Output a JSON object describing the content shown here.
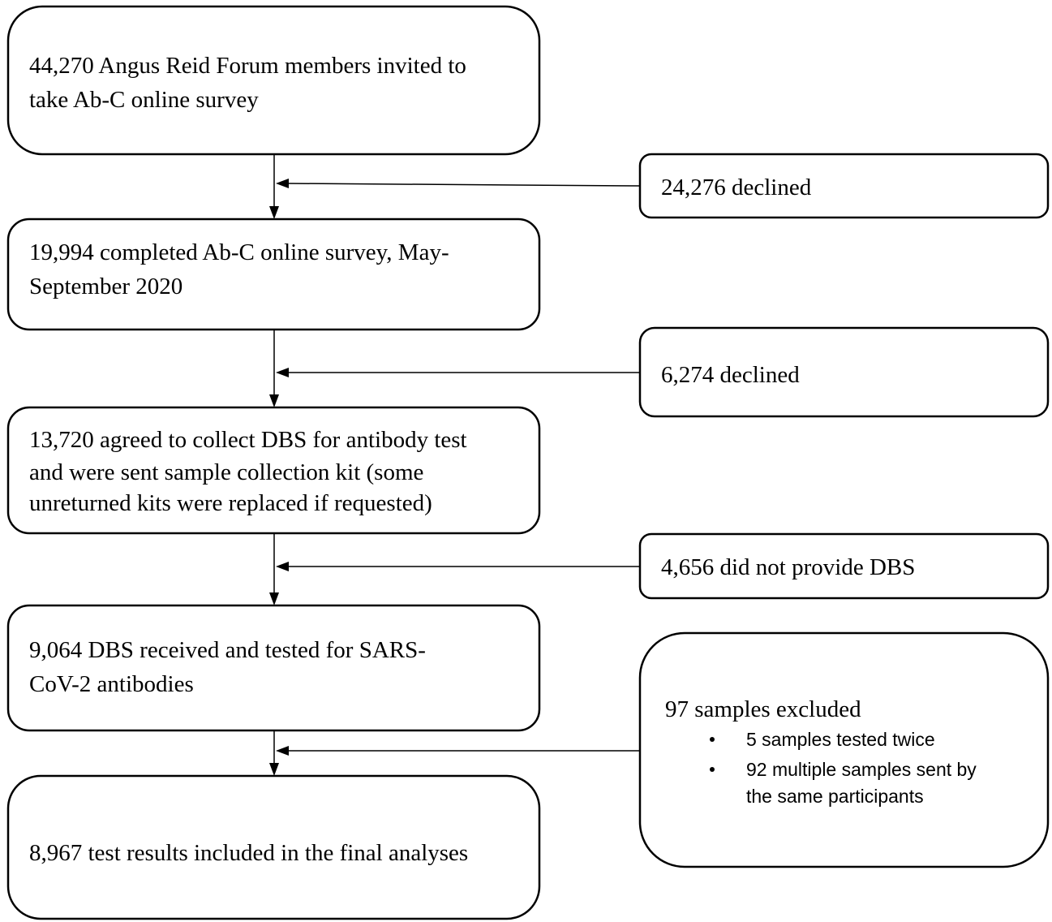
{
  "nodes": [
    {
      "lines": [
        "44,270 Angus Reid Forum members invited to",
        "take Ab-C online survey"
      ]
    },
    {
      "lines": [
        "19,994 completed Ab-C online survey, May-",
        "September 2020"
      ]
    },
    {
      "lines": [
        "13,720 agreed to collect DBS for antibody test",
        "and were sent sample collection kit (some",
        "unreturned kits were replaced if requested)"
      ]
    },
    {
      "lines": [
        "9,064 DBS received and tested for SARS-",
        "CoV-2 antibodies"
      ]
    },
    {
      "lines": [
        "8,967 test results included in the final analyses"
      ]
    }
  ],
  "exclusions": [
    {
      "lines": [
        "24,276 declined"
      ]
    },
    {
      "lines": [
        "6,274 declined"
      ]
    },
    {
      "lines": [
        "4,656 did not provide DBS"
      ]
    },
    {
      "lines": [
        "97 samples excluded"
      ],
      "bullets": [
        [
          "5 samples tested twice"
        ],
        [
          "92 multiple samples sent by",
          "the same participants"
        ]
      ]
    }
  ]
}
